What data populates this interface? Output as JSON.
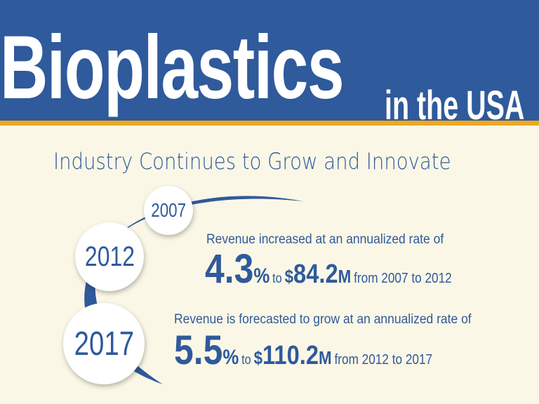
{
  "header": {
    "title": "Bioplastics",
    "title_suffix": "in the USA",
    "subtitle": "Industry Continues to Grow and Innovate"
  },
  "timeline": {
    "years": [
      "2007",
      "2012",
      "2017"
    ]
  },
  "stats": [
    {
      "label": "Revenue increased at an annualized rate of",
      "rate": "4.3",
      "percent_sign": "%",
      "to_text": "to",
      "currency": "$",
      "amount": "84.2",
      "unit": "M",
      "range": "from 2007 to 2012"
    },
    {
      "label": "Revenue is forecasted to grow at an annualized rate of",
      "rate": "5.5",
      "percent_sign": "%",
      "to_text": "to",
      "currency": "$",
      "amount": "110.2",
      "unit": "M",
      "range": "from 2012 to 2017"
    }
  ],
  "colors": {
    "primary_blue": "#2f5a9b",
    "accent_orange": "#f0a81c",
    "background_cream": "#fbf7e7"
  }
}
